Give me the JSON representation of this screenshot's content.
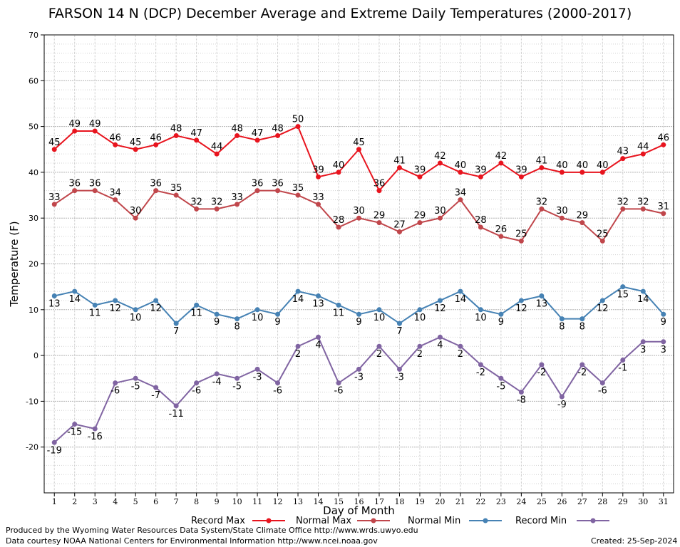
{
  "chart_data": {
    "type": "line",
    "title": "FARSON 14 N (DCP) December Average and Extreme Daily Temperatures (2000-2017)",
    "xlabel": "Day of Month",
    "ylabel": "Temperature (F)",
    "ylim": [
      -30,
      70
    ],
    "yticks": [
      -20,
      -10,
      0,
      10,
      20,
      30,
      40,
      50,
      60,
      70
    ],
    "x": [
      1,
      2,
      3,
      4,
      5,
      6,
      7,
      8,
      9,
      10,
      11,
      12,
      13,
      14,
      15,
      16,
      17,
      18,
      19,
      20,
      21,
      22,
      23,
      24,
      25,
      26,
      27,
      28,
      29,
      30,
      31
    ],
    "grid": true,
    "legend_position": "bottom",
    "series": [
      {
        "name": "Record Max",
        "color": "#e8141e",
        "label_position": "above",
        "values": [
          45,
          49,
          49,
          46,
          45,
          46,
          48,
          47,
          44,
          48,
          47,
          48,
          50,
          39,
          40,
          45,
          36,
          41,
          39,
          42,
          40,
          39,
          42,
          39,
          41,
          40,
          40,
          40,
          43,
          44,
          46
        ]
      },
      {
        "name": "Normal Max",
        "color": "#c0464b",
        "label_position": "above",
        "values": [
          33,
          36,
          36,
          34,
          30,
          36,
          35,
          32,
          32,
          33,
          36,
          36,
          35,
          33,
          28,
          30,
          29,
          27,
          29,
          30,
          34,
          28,
          26,
          25,
          32,
          30,
          29,
          25,
          32,
          32,
          31
        ]
      },
      {
        "name": "Normal Min",
        "color": "#4682b4",
        "label_position": "below",
        "values": [
          13,
          14,
          11,
          12,
          10,
          12,
          7,
          11,
          9,
          8,
          10,
          9,
          14,
          13,
          11,
          9,
          10,
          7,
          10,
          12,
          14,
          10,
          9,
          12,
          13,
          8,
          8,
          12,
          15,
          14,
          9
        ]
      },
      {
        "name": "Record Min",
        "color": "#8064a2",
        "label_position": "below",
        "values": [
          -19,
          -15,
          -16,
          -6,
          -5,
          -7,
          -11,
          -6,
          -4,
          -5,
          -3,
          -6,
          2,
          4,
          -6,
          -3,
          2,
          -3,
          2,
          4,
          2,
          -2,
          -5,
          -8,
          -2,
          -9,
          -2,
          -6,
          -1,
          3,
          3
        ]
      }
    ]
  },
  "footer": {
    "produced_by": "Produced by the Wyoming Water Resources Data System/State Climate Office http://www.wrds.uwyo.edu",
    "courtesy": "Data courtesy NOAA National Centers for Environmental Information http://www.ncei.noaa.gov",
    "created": "Created:  25-Sep-2024"
  }
}
